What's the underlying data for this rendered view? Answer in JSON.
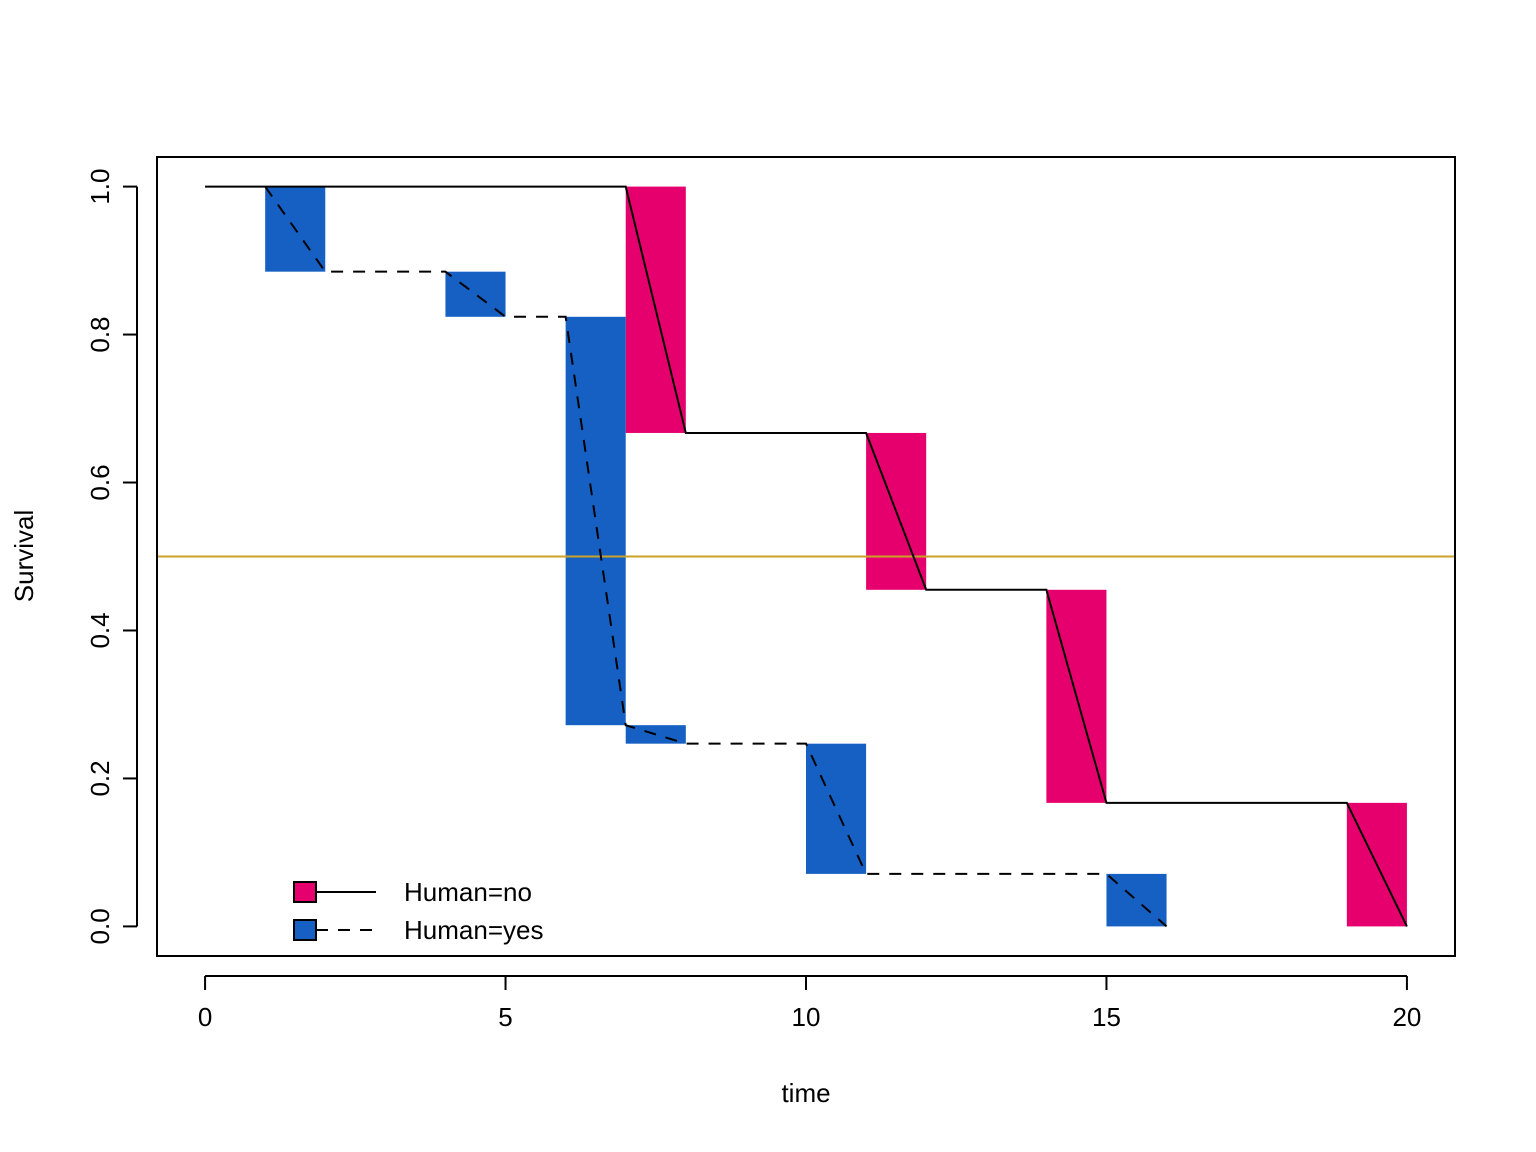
{
  "chart_data": {
    "type": "line",
    "title": "",
    "xlabel": "time",
    "ylabel": "Survival",
    "xlim": [
      -0.8,
      20.8
    ],
    "ylim": [
      -0.04,
      1.04
    ],
    "x_ticks": [
      "0",
      "5",
      "10",
      "15",
      "20"
    ],
    "y_ticks": [
      "0.0",
      "0.2",
      "0.4",
      "0.6",
      "0.8",
      "1.0"
    ],
    "reference_line": {
      "y": 0.5,
      "color": "#C9A227"
    },
    "series": [
      {
        "name": "Human=no",
        "color": "#E6006E",
        "line_style": "solid",
        "points": [
          [
            0,
            1.0
          ],
          [
            7,
            1.0
          ],
          [
            8,
            0.667
          ],
          [
            11,
            0.667
          ],
          [
            12,
            0.455
          ],
          [
            14,
            0.455
          ],
          [
            15,
            0.167
          ],
          [
            19,
            0.167
          ],
          [
            20,
            0.0
          ]
        ],
        "bands": [
          [
            7,
            8,
            0.667,
            1.0
          ],
          [
            11,
            12,
            0.455,
            0.667
          ],
          [
            14,
            15,
            0.167,
            0.455
          ],
          [
            19,
            20,
            0.0,
            0.167
          ]
        ]
      },
      {
        "name": "Human=yes",
        "color": "#1660C4",
        "line_style": "dashed",
        "points": [
          [
            1,
            1.0
          ],
          [
            2,
            0.885
          ],
          [
            4,
            0.885
          ],
          [
            5,
            0.824
          ],
          [
            6,
            0.824
          ],
          [
            7,
            0.272
          ],
          [
            8,
            0.247
          ],
          [
            10,
            0.247
          ],
          [
            11,
            0.071
          ],
          [
            15,
            0.071
          ],
          [
            16,
            0.0
          ]
        ],
        "bands": [
          [
            1,
            2,
            0.885,
            1.0
          ],
          [
            4,
            5,
            0.824,
            0.885
          ],
          [
            6,
            7,
            0.272,
            0.824
          ],
          [
            7,
            8,
            0.247,
            0.272
          ],
          [
            10,
            11,
            0.071,
            0.247
          ],
          [
            15,
            16,
            0.0,
            0.071
          ]
        ]
      }
    ],
    "legend": {
      "position": "bottom-left",
      "entries": [
        "Human=no",
        "Human=yes"
      ]
    },
    "grid": false
  }
}
